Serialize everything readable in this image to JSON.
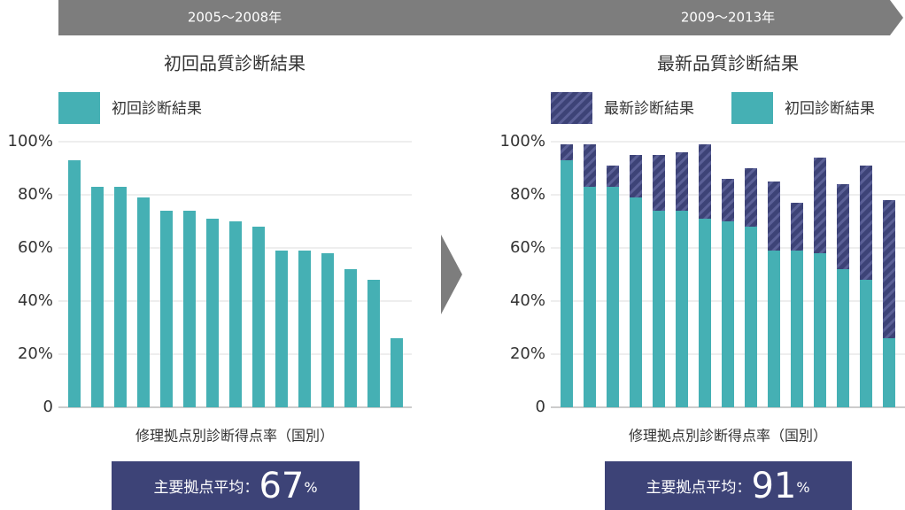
{
  "banner": [
    "2005～2008年",
    "2009～2013年"
  ],
  "chart_data": [
    {
      "type": "bar",
      "title": "初回品質診断結果",
      "x_label": "修理拠点別診断得点率（国別）",
      "series": [
        {
          "name": "初回診断結果",
          "color": "#45b0b4",
          "values": [
            93,
            83,
            83,
            79,
            74,
            74,
            71,
            70,
            68,
            59,
            59,
            58,
            52,
            48,
            26
          ]
        }
      ],
      "ylim": [
        0,
        100
      ],
      "yticks": [
        0,
        {
          "value": 20,
          "label": "20%"
        },
        {
          "value": 40,
          "label": "40%"
        },
        {
          "value": 60,
          "label": "60%"
        },
        {
          "value": 80,
          "label": "80%"
        },
        {
          "value": 100,
          "label": "100%"
        }
      ],
      "grid": true,
      "average_label": "主要拠点平均：",
      "average": 67,
      "average_unit": "%"
    },
    {
      "type": "stacked_bar",
      "title": "最新品質診断結果",
      "x_label": "修理拠点別診断得点率（国別）",
      "series": [
        {
          "name": "初回診断結果",
          "color": "#45b0b4",
          "values": [
            93,
            83,
            83,
            79,
            74,
            74,
            71,
            70,
            68,
            59,
            59,
            58,
            52,
            48,
            26
          ]
        },
        {
          "name": "最新診断結果",
          "color": "#3d4377",
          "hatch": true,
          "values": [
            6,
            16,
            8,
            16,
            21,
            22,
            28,
            16,
            22,
            26,
            18,
            36,
            32,
            43,
            52
          ]
        }
      ],
      "ylim": [
        0,
        100
      ],
      "yticks": [
        0,
        {
          "value": 20,
          "label": "20%"
        },
        {
          "value": 40,
          "label": "40%"
        },
        {
          "value": 60,
          "label": "60%"
        },
        {
          "value": 80,
          "label": "80%"
        },
        {
          "value": 100,
          "label": "100%"
        }
      ],
      "grid": true,
      "average_label": "主要拠点平均：",
      "average": 91,
      "average_unit": "%"
    }
  ]
}
